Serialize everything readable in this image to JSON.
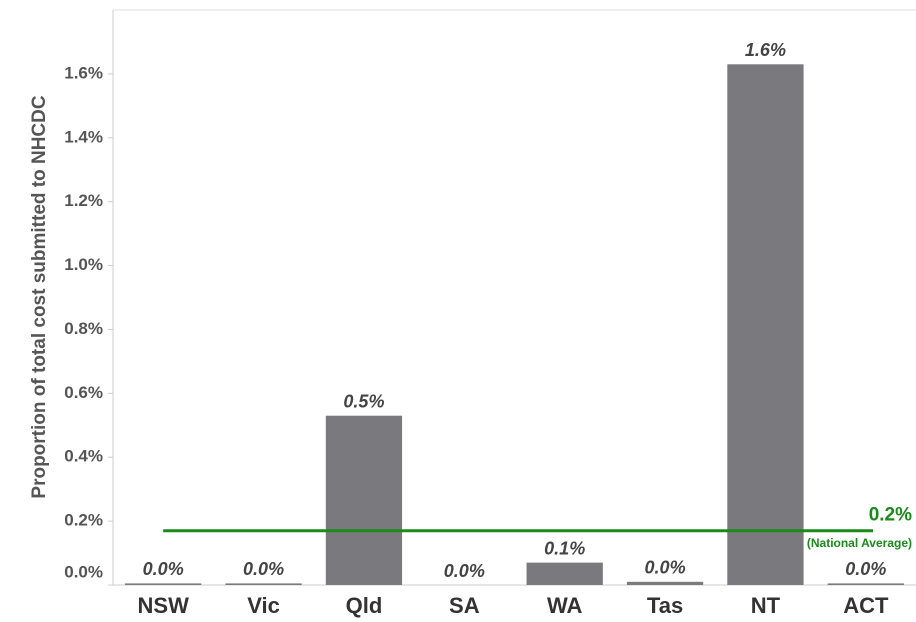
{
  "chart_data": {
    "type": "bar",
    "y_label": "Proportion of total cost submitted to NHCDC",
    "categories": [
      "NSW",
      "Vic",
      "Qld",
      "SA",
      "WA",
      "Tas",
      "NT",
      "ACT"
    ],
    "values": [
      0.005,
      0.005,
      0.53,
      0,
      0.07,
      0.01,
      1.63,
      0.005
    ],
    "value_labels": [
      "0.0%",
      "0.0%",
      "0.5%",
      "0.0%",
      "0.1%",
      "0.0%",
      "1.6%",
      "0.0%"
    ],
    "color": "#7a7a7e",
    "ylim": [
      0,
      1.8
    ],
    "yticks": [
      {
        "value": 0,
        "label": "0.0%"
      },
      {
        "value": 0.2,
        "label": "0.2%"
      },
      {
        "value": 0.4,
        "label": "0.4%"
      },
      {
        "value": 0.6,
        "label": "0.6%"
      },
      {
        "value": 0.8,
        "label": "0.8%"
      },
      {
        "value": 1.0,
        "label": "1.0%"
      },
      {
        "value": 1.2,
        "label": "1.2%"
      },
      {
        "value": 1.4,
        "label": "1.4%"
      },
      {
        "value": 1.6,
        "label": "1.6%"
      }
    ],
    "reference_line": {
      "value": 0.17,
      "label": "0.2%",
      "sublabel": "(National Average)",
      "color": "#1a8a1a"
    }
  }
}
